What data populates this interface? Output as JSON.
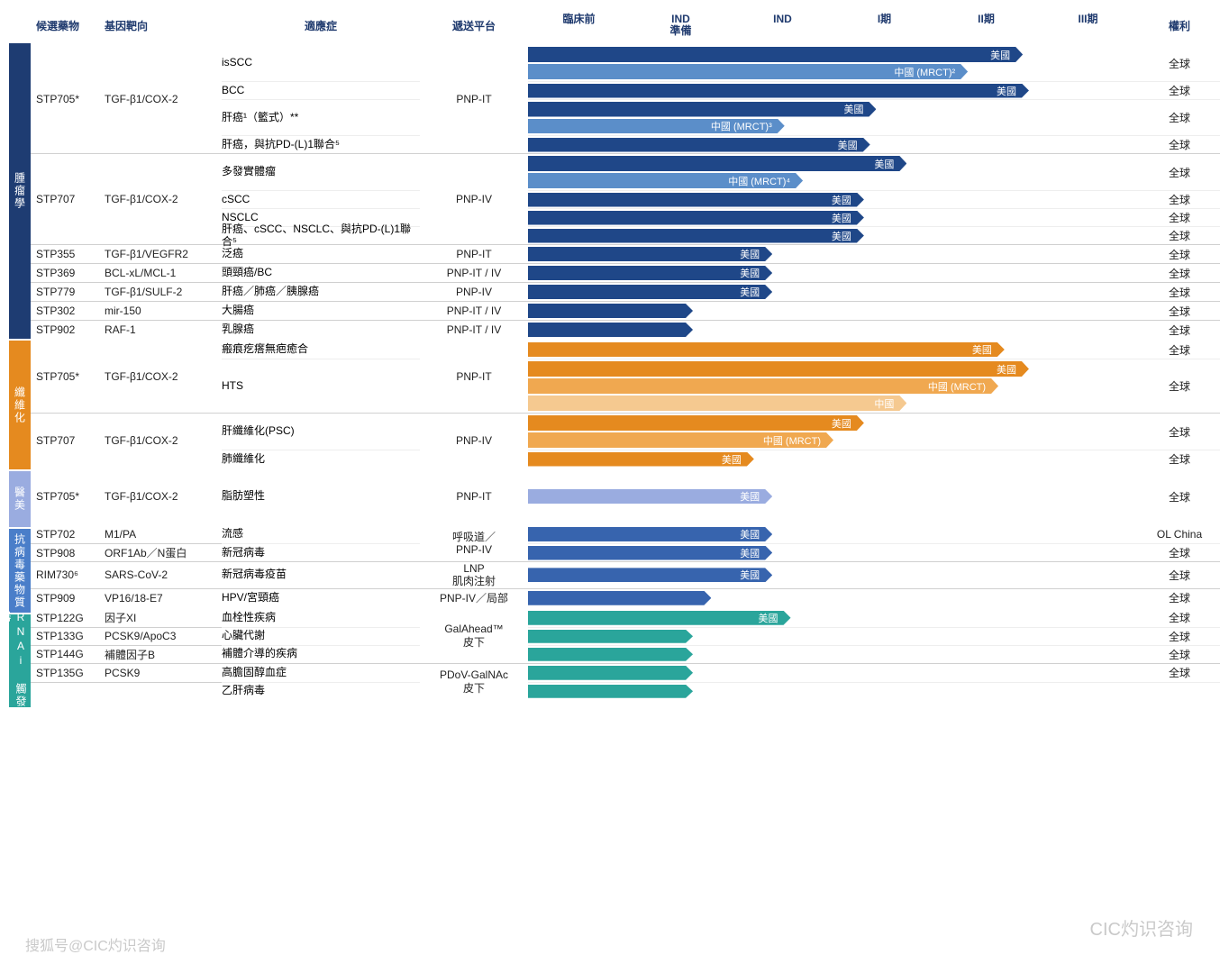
{
  "colors": {
    "header_text": "#1f3a6e",
    "oncology": "#1e3c72",
    "fibrosis": "#e58a1f",
    "medbeauty": "#9aace0",
    "antiviral": "#4a7ec9",
    "galnac": "#2aa59b",
    "bar_dark_blue": "#1f4788",
    "bar_mid_blue": "#5b8ec9",
    "bar_orange": "#e58a1f",
    "bar_orange_mid": "#f0a850",
    "bar_orange_light": "#f5c990",
    "bar_lav": "#9aace0",
    "bar_blue2": "#3764ae",
    "bar_teal": "#2aa59b"
  },
  "header": {
    "drug": "候選藥物",
    "target": "基因靶向",
    "indication": "適應症",
    "platform": "遞送平台",
    "rights": "權利",
    "phases": [
      "臨床前",
      "IND\n準備",
      "IND",
      "I期",
      "II期",
      "III期"
    ]
  },
  "phase_count": 6,
  "categories": [
    {
      "name": "腫瘤學",
      "color_key": "oncology",
      "groups": [
        {
          "drug": "STP705*",
          "target": "TGF-β1/COX-2",
          "platform": "PNP-IT",
          "rows": [
            {
              "ind": "isSCC",
              "rights": "全球",
              "bars": [
                {
                  "label": "美國",
                  "pct": 81,
                  "c": "bar_dark_blue"
                },
                {
                  "label": "中國 (MRCT)²",
                  "pct": 72,
                  "c": "bar_mid_blue"
                }
              ]
            },
            {
              "ind": "BCC",
              "rights": "全球",
              "bars": [
                {
                  "label": "美國",
                  "pct": 82,
                  "c": "bar_dark_blue"
                }
              ]
            },
            {
              "ind": "肝癌¹（籃式）**",
              "rights": "全球",
              "bars": [
                {
                  "label": "美國",
                  "pct": 57,
                  "c": "bar_dark_blue"
                },
                {
                  "label": "中國 (MRCT)³",
                  "pct": 42,
                  "c": "bar_mid_blue"
                }
              ]
            },
            {
              "ind": "肝癌，與抗PD-(L)1聯合⁵",
              "rights": "全球",
              "bars": [
                {
                  "label": "美國",
                  "pct": 56,
                  "c": "bar_dark_blue"
                }
              ]
            }
          ]
        },
        {
          "drug": "STP707",
          "target": "TGF-β1/COX-2",
          "platform": "PNP-IV",
          "rows": [
            {
              "ind": "多發實體瘤",
              "rights": "全球",
              "bars": [
                {
                  "label": "美國",
                  "pct": 62,
                  "c": "bar_dark_blue"
                },
                {
                  "label": "中國 (MRCT)⁴",
                  "pct": 45,
                  "c": "bar_mid_blue"
                }
              ]
            },
            {
              "ind": "cSCC",
              "rights": "全球",
              "bars": [
                {
                  "label": "美國",
                  "pct": 55,
                  "c": "bar_dark_blue"
                }
              ]
            },
            {
              "ind": "NSCLC",
              "rights": "全球",
              "bars": [
                {
                  "label": "美國",
                  "pct": 55,
                  "c": "bar_dark_blue"
                }
              ]
            },
            {
              "ind": "肝癌、cSCC、NSCLC、與抗PD-(L)1聯合⁵",
              "rights": "全球",
              "bars": [
                {
                  "label": "美國",
                  "pct": 55,
                  "c": "bar_dark_blue"
                }
              ]
            }
          ]
        },
        {
          "drug": "STP355",
          "target": "TGF-β1/VEGFR2",
          "platform": "PNP-IT",
          "rows": [
            {
              "ind": "泛癌",
              "rights": "全球",
              "bars": [
                {
                  "label": "美國",
                  "pct": 40,
                  "c": "bar_dark_blue"
                }
              ]
            }
          ]
        },
        {
          "drug": "STP369",
          "target": "BCL-xL/MCL-1",
          "platform": "PNP-IT / IV",
          "rows": [
            {
              "ind": "頭頸癌/BC",
              "rights": "全球",
              "bars": [
                {
                  "label": "美國",
                  "pct": 40,
                  "c": "bar_dark_blue"
                }
              ]
            }
          ]
        },
        {
          "drug": "STP779",
          "target": "TGF-β1/SULF-2",
          "platform": "PNP-IV",
          "rows": [
            {
              "ind": "肝癌／肺癌／胰腺癌",
              "rights": "全球",
              "bars": [
                {
                  "label": "美國",
                  "pct": 40,
                  "c": "bar_dark_blue"
                }
              ]
            }
          ]
        },
        {
          "drug": "STP302",
          "target": "mir-150",
          "platform": "PNP-IT / IV",
          "rows": [
            {
              "ind": "大腸癌",
              "rights": "全球",
              "bars": [
                {
                  "label": "",
                  "pct": 27,
                  "c": "bar_dark_blue"
                }
              ]
            }
          ]
        },
        {
          "drug": "STP902",
          "target": "RAF-1",
          "platform": "PNP-IT / IV",
          "rows": [
            {
              "ind": "乳腺癌",
              "rights": "全球",
              "bars": [
                {
                  "label": "",
                  "pct": 27,
                  "c": "bar_dark_blue"
                }
              ]
            }
          ]
        }
      ]
    },
    {
      "name": "纖維化",
      "color_key": "fibrosis",
      "groups": [
        {
          "drug": "STP705*",
          "target": "TGF-β1/COX-2",
          "platform": "PNP-IT",
          "rows": [
            {
              "ind": "瘢痕疙瘩無疤癒合",
              "rights": "全球",
              "bars": [
                {
                  "label": "美國",
                  "pct": 78,
                  "c": "bar_orange"
                }
              ]
            },
            {
              "ind": "HTS",
              "rights": "全球",
              "bars": [
                {
                  "label": "美國",
                  "pct": 82,
                  "c": "bar_orange"
                },
                {
                  "label": "中國 (MRCT)",
                  "pct": 77,
                  "c": "bar_orange_mid"
                },
                {
                  "label": "中國",
                  "pct": 62,
                  "c": "bar_orange_light"
                }
              ]
            }
          ]
        },
        {
          "drug": "STP707",
          "target": "TGF-β1/COX-2",
          "platform": "PNP-IV",
          "rows": [
            {
              "ind": "肝纖維化(PSC)",
              "rights": "全球",
              "bars": [
                {
                  "label": "美國",
                  "pct": 55,
                  "c": "bar_orange"
                },
                {
                  "label": "中國 (MRCT)",
                  "pct": 50,
                  "c": "bar_orange_mid"
                }
              ]
            },
            {
              "ind": "肺纖維化",
              "rights": "全球",
              "bars": [
                {
                  "label": "美國",
                  "pct": 37,
                  "c": "bar_orange"
                }
              ]
            }
          ]
        }
      ]
    },
    {
      "name": "醫美",
      "color_key": "medbeauty",
      "groups": [
        {
          "drug": "STP705*",
          "target": "TGF-β1/COX-2",
          "platform": "PNP-IT",
          "rows": [
            {
              "ind": "脂肪塑性",
              "rights": "全球",
              "bars": [
                {
                  "label": "美國",
                  "pct": 40,
                  "c": "bar_lav"
                }
              ]
            }
          ]
        }
      ],
      "pad": 40
    },
    {
      "name": "抗病毒藥物質",
      "color_key": "antiviral",
      "groups": [
        {
          "drug": "STP702",
          "target": "M1/PA",
          "platform": "呼吸道／\nPNP-IV",
          "plat_span": 2,
          "rows": [
            {
              "ind": "流感",
              "rights": "OL China",
              "bars": [
                {
                  "label": "美國",
                  "pct": 40,
                  "c": "bar_blue2"
                }
              ]
            }
          ]
        },
        {
          "drug": "STP908",
          "target": "ORF1Ab／N蛋白",
          "platform": "",
          "rows": [
            {
              "ind": "新冠病毒",
              "rights": "全球",
              "bars": [
                {
                  "label": "美國",
                  "pct": 40,
                  "c": "bar_blue2"
                }
              ]
            }
          ]
        },
        {
          "drug": "RIM730⁶",
          "target": "SARS-CoV-2",
          "platform": "LNP\n肌肉注射",
          "rows": [
            {
              "ind": "新冠病毒疫苗",
              "rights": "全球",
              "bars": [
                {
                  "label": "美國",
                  "pct": 40,
                  "c": "bar_blue2"
                }
              ]
            }
          ]
        },
        {
          "drug": "STP909",
          "target": "VP16/18-E7",
          "platform": "PNP-IV／局部",
          "rows": [
            {
              "ind": "HPV/宮頸癌",
              "rights": "全球",
              "bars": [
                {
                  "label": "",
                  "pct": 30,
                  "c": "bar_blue2"
                }
              ]
            }
          ]
        }
      ]
    },
    {
      "name": "GaINAc-RNAi 觸發器",
      "color_key": "galnac",
      "groups": [
        {
          "drug": "STP122G",
          "target": "因子XI",
          "platform": "GalAhead™\n皮下",
          "plat_span": 3,
          "rows": [
            {
              "ind": "血栓性疾病",
              "rights": "全球",
              "bars": [
                {
                  "label": "美國",
                  "pct": 43,
                  "c": "bar_teal"
                }
              ]
            }
          ]
        },
        {
          "drug": "STP133G",
          "target": "PCSK9/ApoC3",
          "platform": "",
          "rows": [
            {
              "ind": "心臟代謝",
              "rights": "全球",
              "bars": [
                {
                  "label": "",
                  "pct": 27,
                  "c": "bar_teal"
                }
              ]
            }
          ]
        },
        {
          "drug": "STP144G",
          "target": "補體因子B",
          "platform": "",
          "rows": [
            {
              "ind": "補體介導的疾病",
              "rights": "全球",
              "bars": [
                {
                  "label": "",
                  "pct": 27,
                  "c": "bar_teal"
                }
              ]
            }
          ]
        },
        {
          "drug": "STP135G",
          "target": "PCSK9",
          "platform": "PDoV-GalNAc\n皮下",
          "plat_span": 2,
          "rows": [
            {
              "ind": "高膽固醇血症",
              "rights": "全球",
              "bars": [
                {
                  "label": "",
                  "pct": 27,
                  "c": "bar_teal"
                }
              ]
            }
          ]
        },
        {
          "drug": "",
          "target": "",
          "platform": "",
          "rows": [
            {
              "ind": "乙肝病毒",
              "rights": "",
              "bars": [
                {
                  "label": "",
                  "pct": 27,
                  "c": "bar_teal"
                }
              ]
            }
          ]
        }
      ]
    }
  ],
  "watermarks": {
    "left": "搜狐号@CIC灼识咨询",
    "right": "CIC灼识咨询"
  }
}
